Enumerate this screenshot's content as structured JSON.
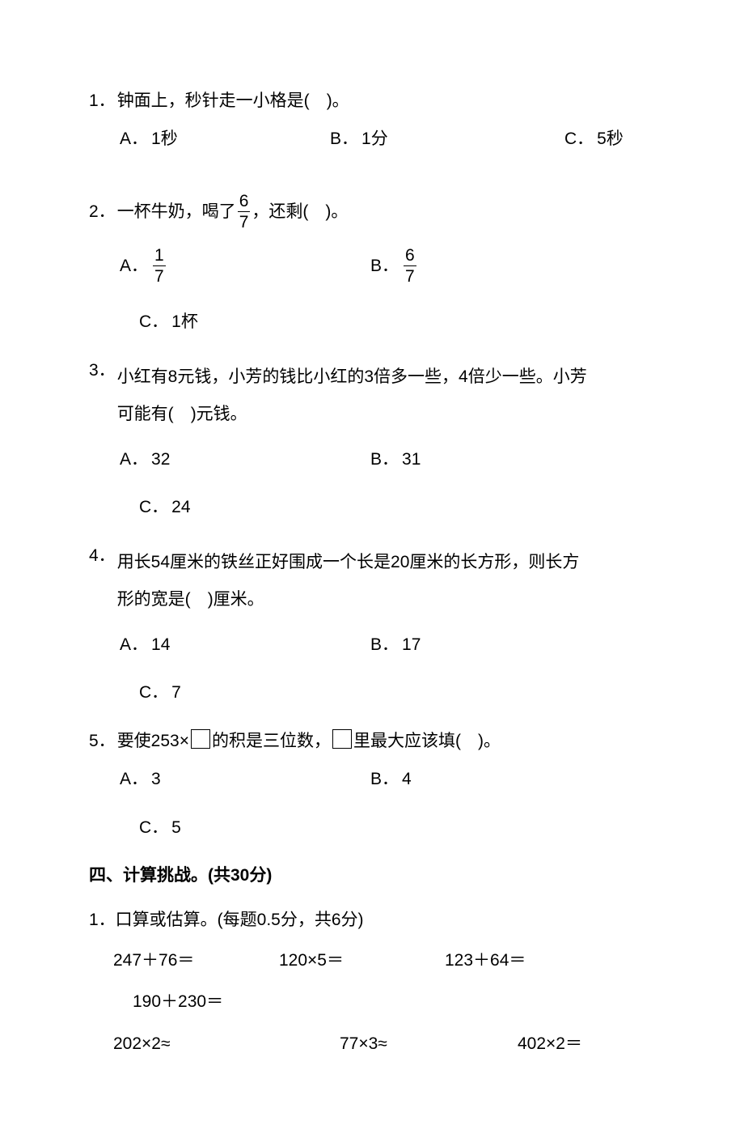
{
  "q1": {
    "num": "1．",
    "stem_a": "钟面上，秒针走一小格是(",
    "stem_b": ")。",
    "gap": "　",
    "optA_label": "A．",
    "optA_text": "1秒",
    "optB_label": "B．",
    "optB_text": "1分",
    "optC_label": "C．",
    "optC_text": "5秒"
  },
  "q2": {
    "num": "2．",
    "stem_a": "一杯牛奶，喝了",
    "frac_n": "6",
    "frac_d": "7",
    "stem_b": "，还剩(",
    "stem_c": ")。",
    "gap": "　",
    "optA_label": "A．",
    "optA_frac_n": "1",
    "optA_frac_d": "7",
    "optB_label": "B．",
    "optB_frac_n": "6",
    "optB_frac_d": "7",
    "optC_label": "C．",
    "optC_text": "1杯"
  },
  "q3": {
    "num": "3．",
    "stem_line1": "小红有8元钱，小芳的钱比小红的3倍多一些，4倍少一些。小芳",
    "stem_line2_a": "可能有(",
    "stem_line2_b": ")元钱。",
    "gap": "　",
    "optA_label": "A．",
    "optA_text": "32",
    "optB_label": "B．",
    "optB_text": "31",
    "optC_label": "C．",
    "optC_text": "24"
  },
  "q4": {
    "num": "4．",
    "stem_line1": "用长54厘米的铁丝正好围成一个长是20厘米的长方形，则长方",
    "stem_line2_a": "形的宽是(",
    "stem_line2_b": ")厘米。",
    "gap": "　",
    "optA_label": "A．",
    "optA_text": "14",
    "optB_label": "B．",
    "optB_text": "17",
    "optC_label": "C．",
    "optC_text": "7"
  },
  "q5": {
    "num": "5．",
    "stem_a": "要使253×",
    "stem_b": "的积是三位数，",
    "stem_c": "里最大应该填(",
    "stem_d": ")。",
    "gap": "　",
    "optA_label": "A．",
    "optA_text": "3",
    "optB_label": "B．",
    "optB_text": "4",
    "optC_label": "C．",
    "optC_text": "5"
  },
  "section4": {
    "heading": "四、计算挑战。(共30分)",
    "sub1": "1．口算或估算。(每题0.5分，共6分)",
    "row1": {
      "c0": "247＋76＝",
      "c1": "120×5＝",
      "c2": "123＋64＝"
    },
    "row2_single": "190＋230＝",
    "row3": {
      "c0": "202×2≈",
      "c1": "77×3≈",
      "c2": "402×2＝"
    }
  }
}
